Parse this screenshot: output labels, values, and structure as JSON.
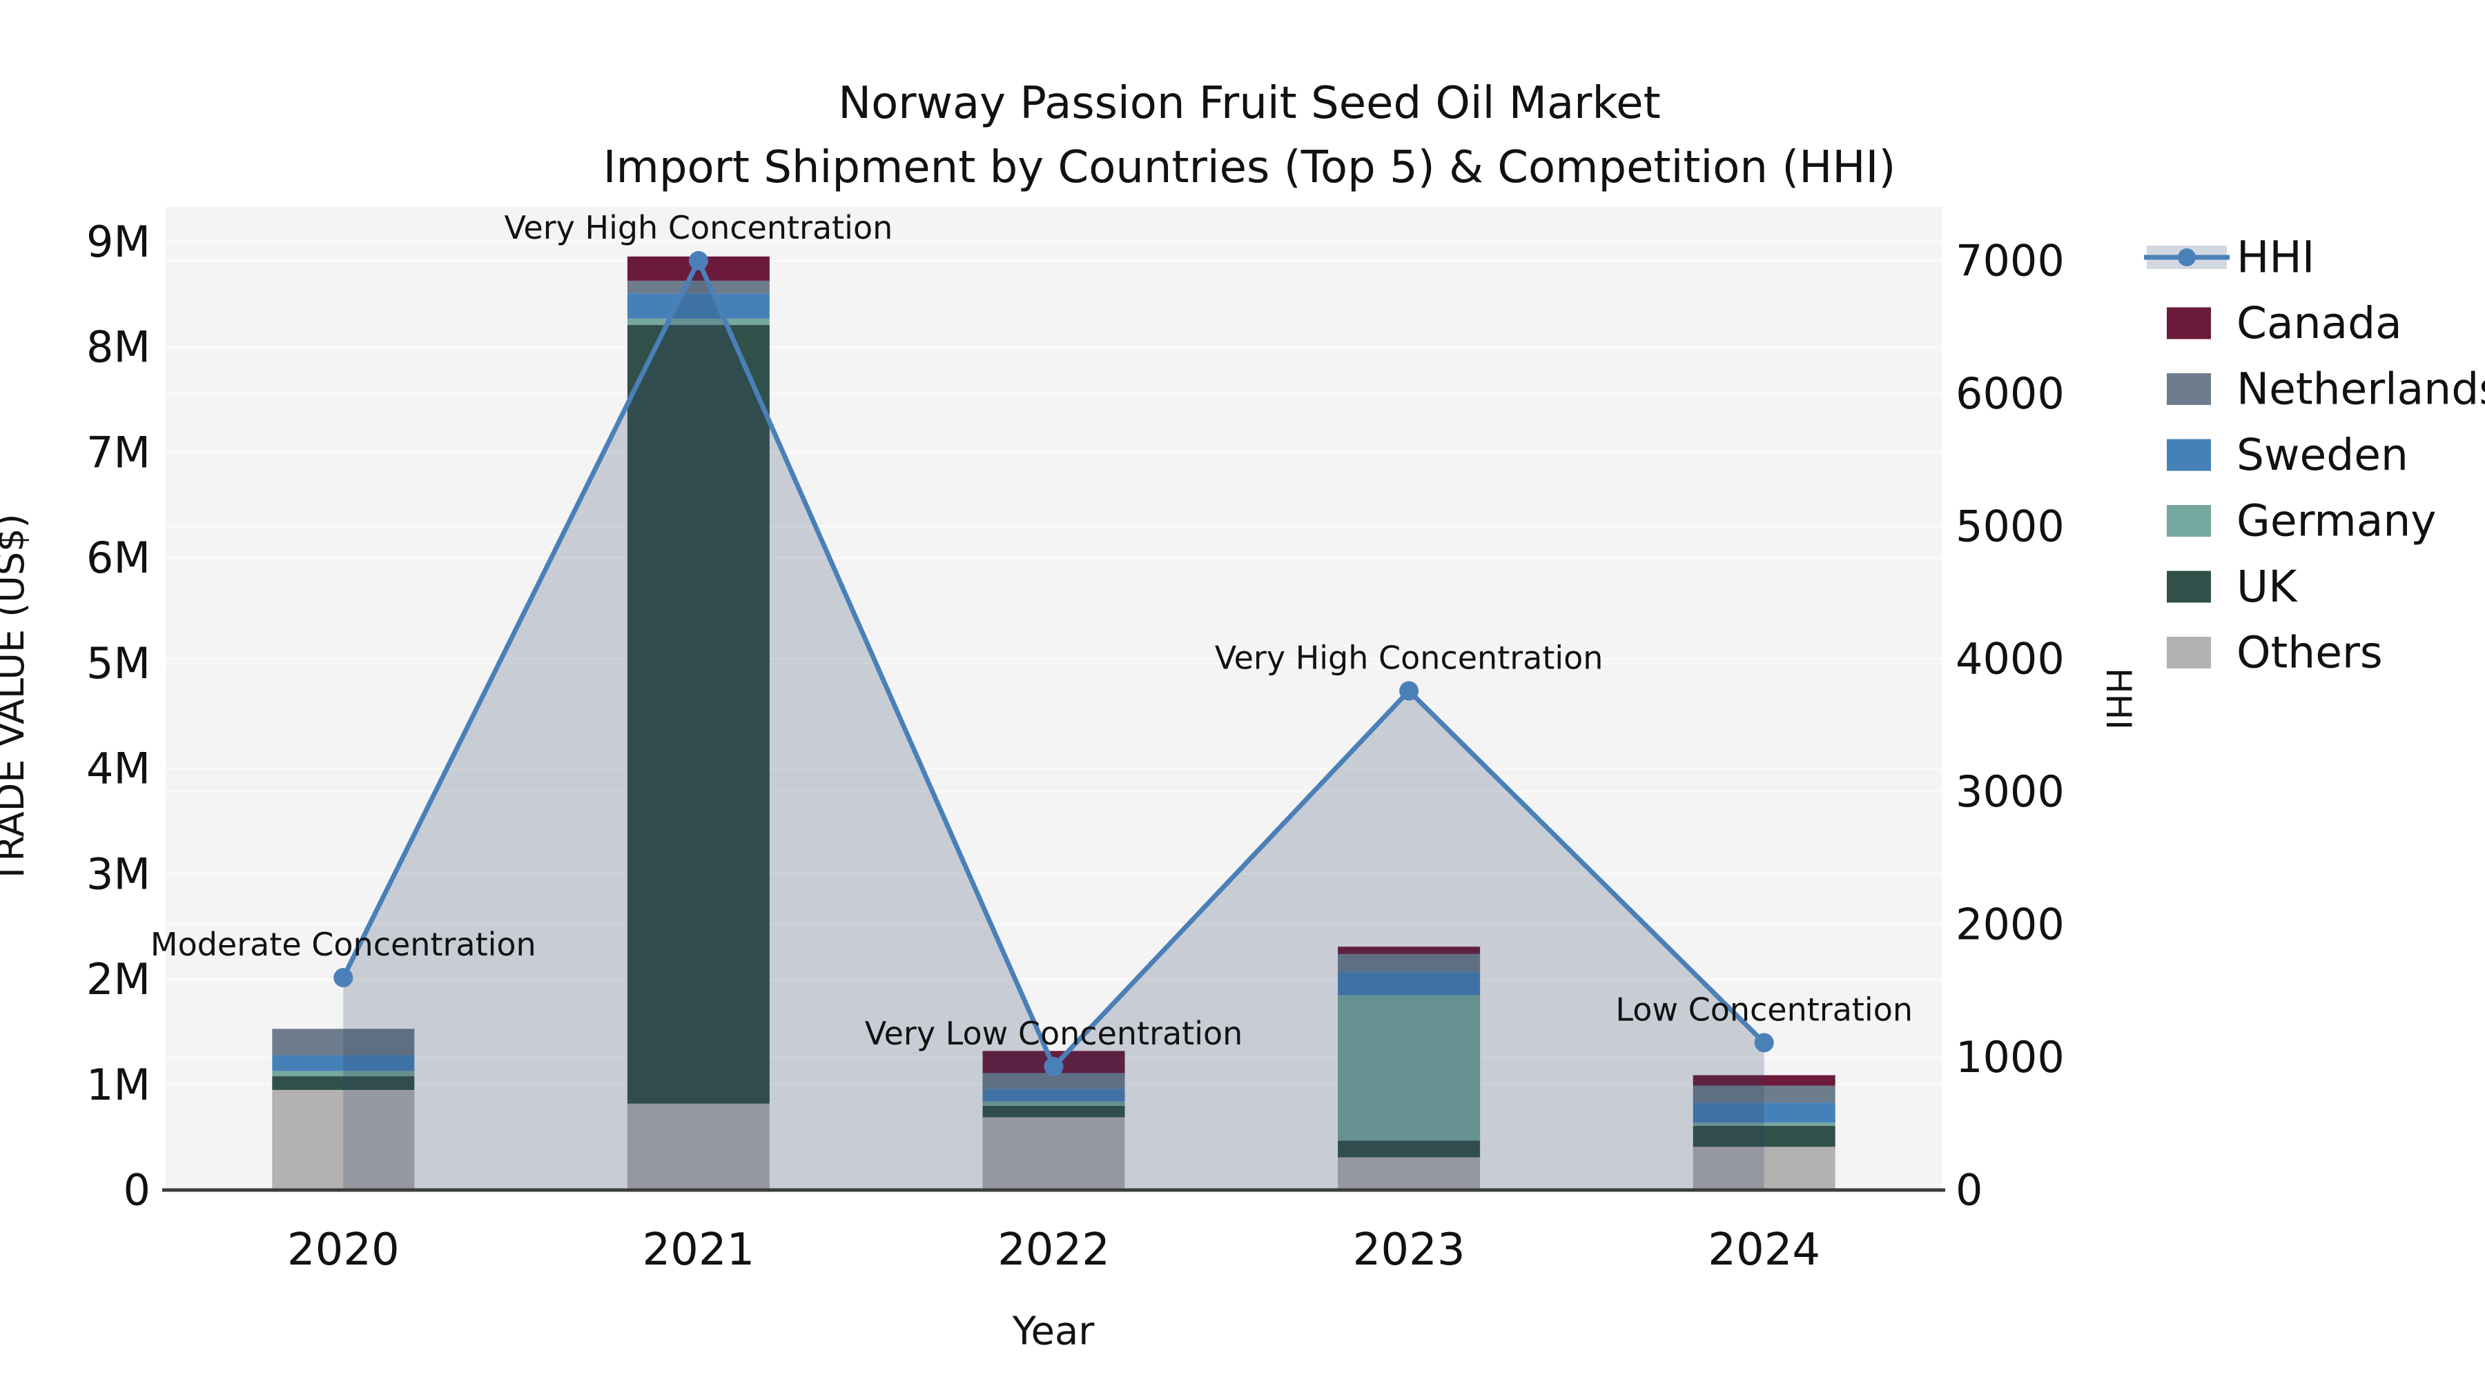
{
  "chart_data": {
    "type": "bar+line combo (stacked bars, dual axis)",
    "title_line1": "Norway Passion Fruit Seed Oil Market",
    "title_line2": "Import Shipment by Countries (Top 5) & Competition (HHI)",
    "xlabel": "Year",
    "ylabel_left": "TRADE VALUE (US$)",
    "ylabel_right": "HHI",
    "categories": [
      "2020",
      "2021",
      "2022",
      "2023",
      "2024"
    ],
    "stack_series": [
      {
        "name": "Others",
        "color": "#b3b2b1",
        "values": [
          950000,
          820000,
          690000,
          310000,
          410000
        ]
      },
      {
        "name": "UK",
        "color": "#32504a",
        "values": [
          130000,
          7390000,
          110000,
          160000,
          200000
        ]
      },
      {
        "name": "Germany",
        "color": "#75a89f",
        "values": [
          50000,
          60000,
          40000,
          1380000,
          30000
        ]
      },
      {
        "name": "Sweden",
        "color": "#4581b8",
        "values": [
          150000,
          240000,
          120000,
          220000,
          190000
        ]
      },
      {
        "name": "Netherlands",
        "color": "#6e7d8d",
        "values": [
          250000,
          120000,
          150000,
          170000,
          160000
        ]
      },
      {
        "name": "Canada",
        "color": "#6b1a3c",
        "values": [
          0,
          230000,
          210000,
          70000,
          100000
        ]
      }
    ],
    "line_series": {
      "name": "HHI",
      "color": "#4a80b8",
      "area_fill": "rgba(45,65,95,0.22)",
      "values": [
        1600,
        7000,
        930,
        3760,
        1110
      ]
    },
    "annotations": [
      "Moderate Concentration",
      "Very High Concentration",
      "Very Low Concentration",
      "Very High Concentration",
      "Low Concentration"
    ],
    "y_axis": {
      "tick_labels": [
        "0",
        "1M",
        "2M",
        "3M",
        "4M",
        "5M",
        "6M",
        "7M",
        "8M",
        "9M"
      ],
      "tick_values": [
        0,
        1000000,
        2000000,
        3000000,
        4000000,
        5000000,
        6000000,
        7000000,
        8000000,
        9000000
      ],
      "max": 9330000
    },
    "y2_axis": {
      "tick_labels": [
        "0",
        "1000",
        "2000",
        "3000",
        "4000",
        "5000",
        "6000",
        "7000"
      ],
      "tick_values": [
        0,
        1000,
        2000,
        3000,
        4000,
        5000,
        6000,
        7000
      ],
      "max": 7405
    },
    "legend_order": [
      "HHI",
      "Canada",
      "Netherlands",
      "Sweden",
      "Germany",
      "UK",
      "Others"
    ],
    "colors": {
      "plot_bg": "#f4f4f5",
      "grid": "#fafafa",
      "axis_line": "#3c3c3c",
      "text": "#111111",
      "legend_line_band": "#d2d8df"
    },
    "legend_position": "right",
    "grid": true
  }
}
